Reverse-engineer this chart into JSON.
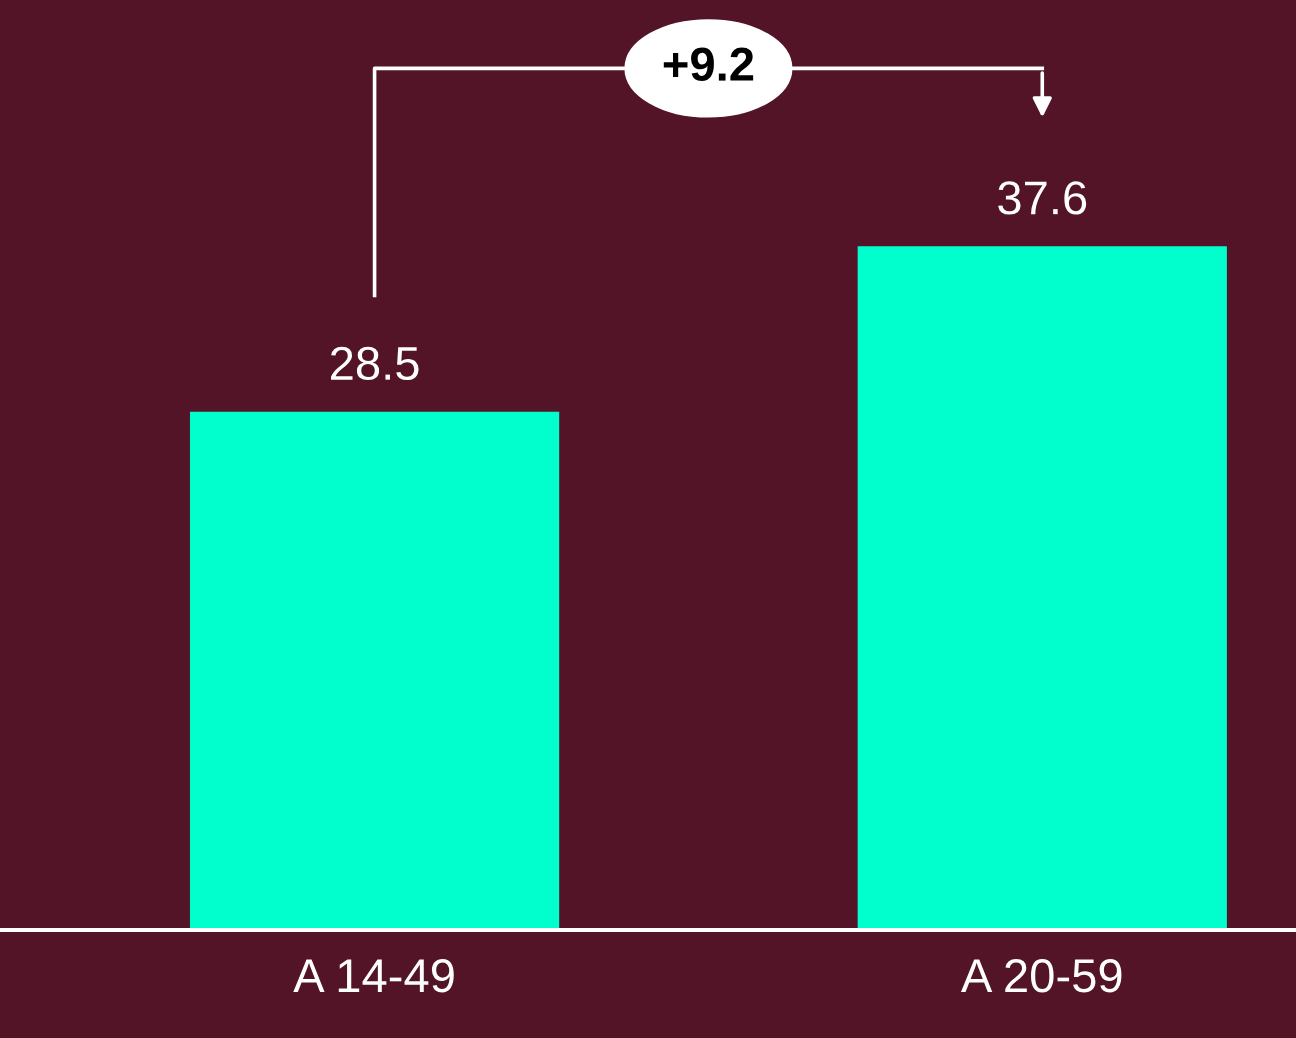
{
  "chart_data": {
    "type": "bar",
    "categories": [
      "A 14-49",
      "A 20-59"
    ],
    "values": [
      28.5,
      37.6
    ],
    "color": "#00ffcc",
    "data_labels": true,
    "grid": false,
    "annotations": [
      "+9.2"
    ]
  }
}
